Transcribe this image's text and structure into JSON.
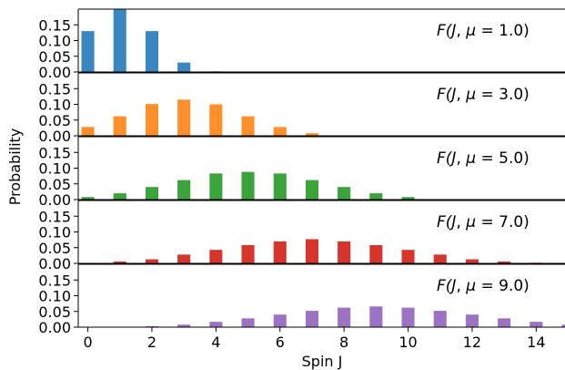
{
  "chart_data": {
    "type": "bar",
    "xlabel": "Spin J",
    "ylabel": "Probability",
    "xlim": [
      -0.3,
      14.9
    ],
    "ylim": [
      0,
      0.2
    ],
    "x_ticks": [
      0,
      2,
      4,
      6,
      8,
      10,
      12,
      14
    ],
    "y_ticks": [
      0.0,
      0.05,
      0.1,
      0.15
    ],
    "y_tick_labels": [
      "0.00",
      "0.05",
      "0.10",
      "0.15"
    ],
    "x": [
      0,
      1,
      2,
      3,
      4,
      5,
      6,
      7,
      8,
      9,
      10,
      11,
      12,
      13,
      14,
      15
    ],
    "bar_width": 0.4,
    "panels": [
      {
        "label": "F(J, μ = 1.0)",
        "label_parts": [
          "F(",
          "J",
          ", ",
          "μ",
          " = 1.0)"
        ],
        "color": "#3a86c0",
        "values": [
          0.13,
          0.2,
          0.13,
          0.03,
          0.002,
          0,
          0,
          0,
          0,
          0,
          0,
          0,
          0,
          0,
          0,
          0
        ]
      },
      {
        "label": "F(J, μ = 3.0)",
        "label_parts": [
          "F(",
          "J",
          ", ",
          "μ",
          " = 3.0)"
        ],
        "color": "#ff8f2a",
        "values": [
          0.028,
          0.062,
          0.101,
          0.115,
          0.1,
          0.062,
          0.028,
          0.008,
          0.001,
          0,
          0,
          0,
          0,
          0,
          0,
          0
        ]
      },
      {
        "label": "F(J, μ = 5.0)",
        "label_parts": [
          "F(",
          "J",
          ", ",
          "μ",
          " = 5.0)"
        ],
        "color": "#3aa33a",
        "values": [
          0.008,
          0.02,
          0.04,
          0.062,
          0.083,
          0.088,
          0.083,
          0.062,
          0.04,
          0.02,
          0.008,
          0.001,
          0,
          0,
          0,
          0
        ]
      },
      {
        "label": "F(J, μ = 7.0)",
        "label_parts": [
          "F(",
          "J",
          ", ",
          "μ",
          " = 7.0)"
        ],
        "color": "#d6352e",
        "values": [
          0.001,
          0.006,
          0.013,
          0.028,
          0.043,
          0.058,
          0.07,
          0.077,
          0.07,
          0.058,
          0.043,
          0.028,
          0.013,
          0.006,
          0.002,
          0
        ]
      },
      {
        "label": "F(J, μ = 9.0)",
        "label_parts": [
          "F(",
          "J",
          ", ",
          "μ",
          " = 9.0)"
        ],
        "color": "#9c72c3",
        "values": [
          0,
          0.001,
          0.003,
          0.008,
          0.017,
          0.028,
          0.04,
          0.052,
          0.062,
          0.066,
          0.062,
          0.052,
          0.04,
          0.028,
          0.017,
          0.008
        ]
      }
    ]
  }
}
